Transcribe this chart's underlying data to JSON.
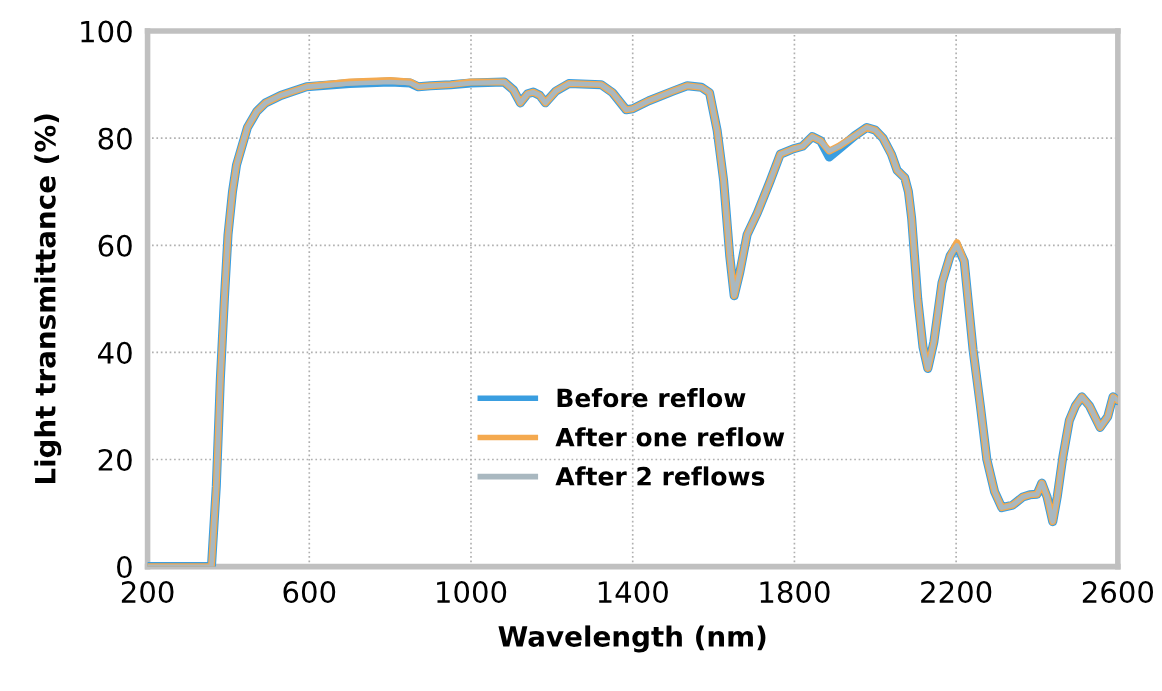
{
  "chart_data": {
    "type": "line",
    "xlabel": "Wavelength (nm)",
    "ylabel": "Light transmittance (%)",
    "x": [
      200,
      300,
      358,
      370,
      380,
      390,
      399,
      410,
      420,
      447,
      470,
      492,
      530,
      593,
      700,
      800,
      850,
      870,
      900,
      950,
      1000,
      1082,
      1105,
      1122,
      1140,
      1154,
      1170,
      1184,
      1210,
      1242,
      1322,
      1350,
      1384,
      1400,
      1440,
      1500,
      1535,
      1570,
      1590,
      1609,
      1625,
      1640,
      1651,
      1665,
      1683,
      1708,
      1740,
      1765,
      1797,
      1820,
      1844,
      1865,
      1886,
      1910,
      1950,
      1979,
      2000,
      2019,
      2040,
      2054,
      2073,
      2082,
      2090,
      2105,
      2118,
      2130,
      2145,
      2165,
      2185,
      2202,
      2220,
      2242,
      2260,
      2276,
      2295,
      2313,
      2340,
      2365,
      2382,
      2400,
      2412,
      2425,
      2439,
      2450,
      2464,
      2480,
      2495,
      2511,
      2530,
      2556,
      2575,
      2588,
      2600
    ],
    "series": [
      {
        "name": "Before reflow",
        "color": "#3a9ee0",
        "values": [
          0,
          0,
          0,
          15,
          35,
          50,
          62,
          70,
          75,
          82,
          85,
          86.6,
          88,
          89.6,
          90.2,
          90.5,
          90.3,
          89.6,
          89.8,
          90,
          90.3,
          90.5,
          89,
          86.6,
          88.3,
          88.6,
          88,
          86.6,
          88.8,
          90.2,
          90,
          88.5,
          85.3,
          85.5,
          87,
          88.8,
          89.8,
          89.5,
          88.5,
          81.4,
          72,
          58,
          50.6,
          55,
          62,
          66,
          72,
          77,
          78,
          78.5,
          80.3,
          79.5,
          76.5,
          78,
          80.5,
          82,
          81.5,
          80,
          77,
          74,
          72.6,
          70,
          65,
          50,
          41,
          37,
          42,
          53,
          58,
          60,
          57,
          40.4,
          30,
          20,
          14,
          11,
          11.5,
          13,
          13.4,
          13.5,
          15.6,
          13,
          8.4,
          13,
          20.5,
          27.3,
          30,
          31.7,
          30,
          26,
          28,
          31.7,
          31
        ]
      },
      {
        "name": "After one reflow",
        "color": "#f4a94f",
        "values": [
          0,
          0,
          0,
          15,
          35,
          50,
          62,
          70,
          75,
          82,
          85,
          86.6,
          88,
          89.6,
          90.5,
          90.8,
          90.5,
          89.6,
          89.8,
          90,
          90.5,
          90.5,
          89,
          86.6,
          88.3,
          88.6,
          88,
          86.6,
          88.8,
          90.2,
          90,
          88.5,
          85.3,
          85.5,
          87,
          88.8,
          89.8,
          89.5,
          88.5,
          81.4,
          72,
          58,
          50.6,
          55,
          62,
          66,
          72,
          77,
          78,
          78.5,
          80.3,
          79.5,
          77.6,
          78.5,
          80.5,
          82,
          81.5,
          80,
          77,
          74,
          72.6,
          70,
          65,
          50,
          41,
          37,
          42,
          53,
          58,
          60.5,
          57,
          40.4,
          30,
          20,
          14,
          11,
          11.5,
          13,
          13.4,
          13.5,
          15.6,
          13,
          8.4,
          13,
          20.5,
          27.3,
          30,
          31.7,
          30,
          26,
          28,
          31.7,
          31
        ]
      },
      {
        "name": "After 2 reflows",
        "color": "#a9b8c0",
        "values": [
          0,
          0,
          0,
          15,
          35,
          50,
          62,
          70,
          75,
          82,
          85,
          86.6,
          88,
          89.6,
          90.2,
          90.5,
          90.3,
          89.6,
          89.8,
          90,
          90.3,
          90.5,
          89,
          86.6,
          88.3,
          88.6,
          88,
          86.6,
          88.8,
          90.2,
          90,
          88.5,
          85.3,
          85.5,
          87,
          88.8,
          89.8,
          89.5,
          88.5,
          81.4,
          72,
          58,
          50.6,
          55,
          62,
          66,
          72,
          77,
          78,
          78.5,
          80.3,
          79.5,
          77.6,
          78.5,
          80.5,
          82,
          81.5,
          80,
          77,
          74,
          72.6,
          70,
          65,
          50,
          41,
          37,
          42,
          53,
          58,
          60,
          57,
          40.4,
          30,
          20,
          14,
          11,
          11.5,
          13,
          13.4,
          13.5,
          15.6,
          13,
          8.4,
          13,
          20.5,
          27.3,
          30,
          31.7,
          30,
          26,
          28,
          31.7,
          31
        ]
      }
    ],
    "xlim": [
      200,
      2600
    ],
    "xticks": [
      200,
      600,
      1000,
      1400,
      1800,
      2200,
      2600
    ],
    "ylim": [
      0,
      100
    ],
    "yticks": [
      0,
      20,
      40,
      60,
      80,
      100
    ],
    "grid": true,
    "legend": "bottom center",
    "marker": "none",
    "line_style": "solid"
  }
}
